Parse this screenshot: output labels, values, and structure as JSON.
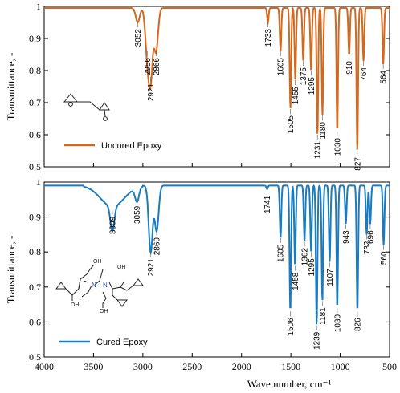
{
  "chart_data": [
    {
      "type": "line",
      "name": "top-panel",
      "ylabel": "Transmittance, -",
      "ylim": [
        0.5,
        1
      ],
      "yticks": [
        "0.5",
        "0.6",
        "0.7",
        "0.8",
        "0.9",
        "1"
      ],
      "xlim": [
        4000,
        500
      ],
      "legend": "Uncured Epoxy",
      "color": "#d2691e",
      "peaks": [
        {
          "label": "3052",
          "x": 3052,
          "y": 0.95
        },
        {
          "label": "2956",
          "x": 2956,
          "y": 0.86
        },
        {
          "label": "2921",
          "x": 2921,
          "y": 0.78
        },
        {
          "label": "2866",
          "x": 2866,
          "y": 0.86
        },
        {
          "label": "1733",
          "x": 1733,
          "y": 0.95
        },
        {
          "label": "1605",
          "x": 1605,
          "y": 0.86
        },
        {
          "label": "1505",
          "x": 1505,
          "y": 0.68
        },
        {
          "label": "1455",
          "x": 1455,
          "y": 0.77
        },
        {
          "label": "1375",
          "x": 1375,
          "y": 0.83
        },
        {
          "label": "1295",
          "x": 1295,
          "y": 0.8
        },
        {
          "label": "1231",
          "x": 1231,
          "y": 0.6
        },
        {
          "label": "1180",
          "x": 1180,
          "y": 0.66
        },
        {
          "label": "1030",
          "x": 1030,
          "y": 0.61
        },
        {
          "label": "910",
          "x": 910,
          "y": 0.85
        },
        {
          "label": "827",
          "x": 827,
          "y": 0.55
        },
        {
          "label": "764",
          "x": 764,
          "y": 0.83
        },
        {
          "label": "564",
          "x": 564,
          "y": 0.82
        }
      ]
    },
    {
      "type": "line",
      "name": "bottom-panel",
      "xlabel": "Wave number, cm⁻¹",
      "ylabel": "Transmittance, -",
      "ylim": [
        0.5,
        1
      ],
      "yticks": [
        "0.5",
        "0.6",
        "0.7",
        "0.8",
        "0.9",
        "1"
      ],
      "xlim": [
        4000,
        500
      ],
      "xticks": [
        "4000",
        "3500",
        "3000",
        "2500",
        "2000",
        "1500",
        "1000",
        "500"
      ],
      "legend": "Cured Epoxy",
      "color": "#1a7bbf",
      "peaks": [
        {
          "label": "3309",
          "x": 3309,
          "y": 0.92
        },
        {
          "label": "3059",
          "x": 3059,
          "y": 0.95
        },
        {
          "label": "2921",
          "x": 2921,
          "y": 0.8
        },
        {
          "label": "2860",
          "x": 2860,
          "y": 0.86
        },
        {
          "label": "1741",
          "x": 1741,
          "y": 0.98
        },
        {
          "label": "1605",
          "x": 1605,
          "y": 0.84
        },
        {
          "label": "1506",
          "x": 1506,
          "y": 0.63
        },
        {
          "label": "1458",
          "x": 1458,
          "y": 0.76
        },
        {
          "label": "1362",
          "x": 1362,
          "y": 0.83
        },
        {
          "label": "1295",
          "x": 1295,
          "y": 0.8
        },
        {
          "label": "1239",
          "x": 1239,
          "y": 0.59
        },
        {
          "label": "1181",
          "x": 1181,
          "y": 0.66
        },
        {
          "label": "1107",
          "x": 1107,
          "y": 0.77
        },
        {
          "label": "1030",
          "x": 1030,
          "y": 0.64
        },
        {
          "label": "943",
          "x": 943,
          "y": 0.88
        },
        {
          "label": "826",
          "x": 826,
          "y": 0.63
        },
        {
          "label": "732",
          "x": 732,
          "y": 0.85
        },
        {
          "label": "696",
          "x": 696,
          "y": 0.88
        },
        {
          "label": "560",
          "x": 560,
          "y": 0.82
        }
      ]
    }
  ]
}
